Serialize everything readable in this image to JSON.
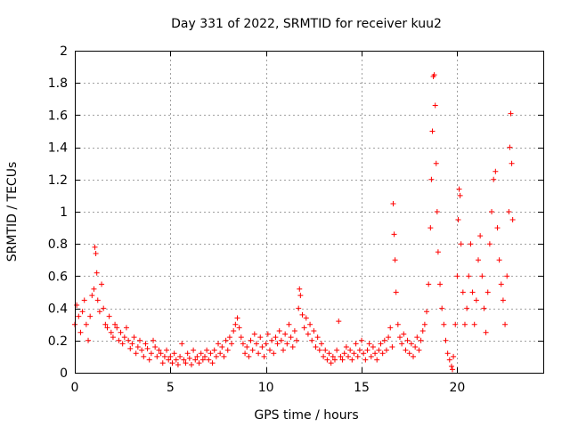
{
  "chart_data": {
    "type": "scatter",
    "title": "Day 331 of 2022, SRMTID for receiver kuu2",
    "xlabel": "GPS time / hours",
    "ylabel": "SRMTID / TECUs",
    "xlim": [
      0,
      24.5
    ],
    "ylim": [
      0,
      2
    ],
    "x_ticks": [
      0,
      5,
      10,
      15,
      20
    ],
    "x_tick_labels": [
      "0",
      "5",
      "10",
      "15",
      "20"
    ],
    "y_ticks": [
      0,
      0.2,
      0.4,
      0.6,
      0.8,
      1,
      1.2,
      1.4,
      1.6,
      1.8,
      2
    ],
    "y_tick_labels": [
      "0",
      "0.2",
      "0.4",
      "0.6",
      "0.8",
      "1",
      "1.2",
      "1.4",
      "1.6",
      "1.8",
      "2"
    ],
    "grid": true,
    "marker": "+",
    "series": [
      {
        "name": "SRMTID",
        "color": "#ff0000",
        "points": [
          [
            0.0,
            0.3
          ],
          [
            0.1,
            0.42
          ],
          [
            0.2,
            0.35
          ],
          [
            0.3,
            0.25
          ],
          [
            0.4,
            0.38
          ],
          [
            0.5,
            0.45
          ],
          [
            0.6,
            0.3
          ],
          [
            0.7,
            0.2
          ],
          [
            0.8,
            0.35
          ],
          [
            0.9,
            0.48
          ],
          [
            1.0,
            0.52
          ],
          [
            1.05,
            0.78
          ],
          [
            1.1,
            0.74
          ],
          [
            1.15,
            0.62
          ],
          [
            1.2,
            0.45
          ],
          [
            1.3,
            0.38
          ],
          [
            1.4,
            0.55
          ],
          [
            1.5,
            0.4
          ],
          [
            1.6,
            0.3
          ],
          [
            1.7,
            0.28
          ],
          [
            1.8,
            0.35
          ],
          [
            1.9,
            0.25
          ],
          [
            2.0,
            0.22
          ],
          [
            2.1,
            0.3
          ],
          [
            2.2,
            0.28
          ],
          [
            2.3,
            0.2
          ],
          [
            2.4,
            0.25
          ],
          [
            2.5,
            0.18
          ],
          [
            2.6,
            0.22
          ],
          [
            2.7,
            0.28
          ],
          [
            2.8,
            0.2
          ],
          [
            2.9,
            0.15
          ],
          [
            3.0,
            0.18
          ],
          [
            3.1,
            0.22
          ],
          [
            3.2,
            0.12
          ],
          [
            3.3,
            0.16
          ],
          [
            3.4,
            0.2
          ],
          [
            3.5,
            0.14
          ],
          [
            3.6,
            0.1
          ],
          [
            3.7,
            0.18
          ],
          [
            3.8,
            0.15
          ],
          [
            3.9,
            0.08
          ],
          [
            4.0,
            0.12
          ],
          [
            4.1,
            0.2
          ],
          [
            4.2,
            0.16
          ],
          [
            4.3,
            0.1
          ],
          [
            4.4,
            0.14
          ],
          [
            4.5,
            0.12
          ],
          [
            4.6,
            0.06
          ],
          [
            4.7,
            0.1
          ],
          [
            4.8,
            0.14
          ],
          [
            4.9,
            0.08
          ],
          [
            5.0,
            0.1
          ],
          [
            5.1,
            0.06
          ],
          [
            5.2,
            0.12
          ],
          [
            5.3,
            0.08
          ],
          [
            5.4,
            0.05
          ],
          [
            5.5,
            0.1
          ],
          [
            5.6,
            0.18
          ],
          [
            5.7,
            0.08
          ],
          [
            5.8,
            0.06
          ],
          [
            5.9,
            0.12
          ],
          [
            6.0,
            0.09
          ],
          [
            6.1,
            0.05
          ],
          [
            6.2,
            0.14
          ],
          [
            6.3,
            0.08
          ],
          [
            6.4,
            0.1
          ],
          [
            6.5,
            0.06
          ],
          [
            6.6,
            0.12
          ],
          [
            6.7,
            0.08
          ],
          [
            6.8,
            0.1
          ],
          [
            6.9,
            0.14
          ],
          [
            7.0,
            0.08
          ],
          [
            7.1,
            0.12
          ],
          [
            7.2,
            0.06
          ],
          [
            7.3,
            0.14
          ],
          [
            7.4,
            0.1
          ],
          [
            7.5,
            0.18
          ],
          [
            7.6,
            0.12
          ],
          [
            7.7,
            0.16
          ],
          [
            7.8,
            0.1
          ],
          [
            7.9,
            0.2
          ],
          [
            8.0,
            0.14
          ],
          [
            8.1,
            0.22
          ],
          [
            8.2,
            0.18
          ],
          [
            8.3,
            0.26
          ],
          [
            8.4,
            0.3
          ],
          [
            8.5,
            0.34
          ],
          [
            8.6,
            0.28
          ],
          [
            8.7,
            0.22
          ],
          [
            8.8,
            0.18
          ],
          [
            8.9,
            0.12
          ],
          [
            9.0,
            0.16
          ],
          [
            9.1,
            0.1
          ],
          [
            9.2,
            0.2
          ],
          [
            9.3,
            0.14
          ],
          [
            9.4,
            0.24
          ],
          [
            9.5,
            0.18
          ],
          [
            9.6,
            0.12
          ],
          [
            9.7,
            0.22
          ],
          [
            9.8,
            0.16
          ],
          [
            9.9,
            0.1
          ],
          [
            10.0,
            0.18
          ],
          [
            10.1,
            0.24
          ],
          [
            10.2,
            0.14
          ],
          [
            10.3,
            0.2
          ],
          [
            10.4,
            0.12
          ],
          [
            10.5,
            0.22
          ],
          [
            10.6,
            0.18
          ],
          [
            10.7,
            0.26
          ],
          [
            10.8,
            0.2
          ],
          [
            10.9,
            0.14
          ],
          [
            11.0,
            0.24
          ],
          [
            11.1,
            0.18
          ],
          [
            11.2,
            0.3
          ],
          [
            11.3,
            0.22
          ],
          [
            11.4,
            0.16
          ],
          [
            11.5,
            0.26
          ],
          [
            11.6,
            0.2
          ],
          [
            11.7,
            0.4
          ],
          [
            11.75,
            0.52
          ],
          [
            11.8,
            0.48
          ],
          [
            11.9,
            0.36
          ],
          [
            12.0,
            0.28
          ],
          [
            12.1,
            0.34
          ],
          [
            12.2,
            0.24
          ],
          [
            12.3,
            0.3
          ],
          [
            12.4,
            0.2
          ],
          [
            12.5,
            0.26
          ],
          [
            12.6,
            0.16
          ],
          [
            12.7,
            0.22
          ],
          [
            12.8,
            0.14
          ],
          [
            12.9,
            0.18
          ],
          [
            13.0,
            0.1
          ],
          [
            13.1,
            0.14
          ],
          [
            13.2,
            0.08
          ],
          [
            13.3,
            0.12
          ],
          [
            13.4,
            0.06
          ],
          [
            13.5,
            0.1
          ],
          [
            13.6,
            0.08
          ],
          [
            13.7,
            0.14
          ],
          [
            13.8,
            0.32
          ],
          [
            13.9,
            0.1
          ],
          [
            14.0,
            0.08
          ],
          [
            14.1,
            0.12
          ],
          [
            14.2,
            0.16
          ],
          [
            14.3,
            0.1
          ],
          [
            14.4,
            0.14
          ],
          [
            14.5,
            0.08
          ],
          [
            14.6,
            0.12
          ],
          [
            14.7,
            0.18
          ],
          [
            14.8,
            0.1
          ],
          [
            14.9,
            0.14
          ],
          [
            15.0,
            0.2
          ],
          [
            15.1,
            0.12
          ],
          [
            15.2,
            0.08
          ],
          [
            15.3,
            0.14
          ],
          [
            15.4,
            0.18
          ],
          [
            15.5,
            0.1
          ],
          [
            15.6,
            0.16
          ],
          [
            15.7,
            0.12
          ],
          [
            15.8,
            0.08
          ],
          [
            15.9,
            0.14
          ],
          [
            16.0,
            0.18
          ],
          [
            16.1,
            0.12
          ],
          [
            16.2,
            0.2
          ],
          [
            16.3,
            0.14
          ],
          [
            16.4,
            0.22
          ],
          [
            16.5,
            0.28
          ],
          [
            16.6,
            0.16
          ],
          [
            16.65,
            1.05
          ],
          [
            16.7,
            0.86
          ],
          [
            16.75,
            0.7
          ],
          [
            16.8,
            0.5
          ],
          [
            16.9,
            0.3
          ],
          [
            17.0,
            0.22
          ],
          [
            17.1,
            0.18
          ],
          [
            17.2,
            0.24
          ],
          [
            17.3,
            0.14
          ],
          [
            17.4,
            0.2
          ],
          [
            17.5,
            0.12
          ],
          [
            17.6,
            0.18
          ],
          [
            17.7,
            0.1
          ],
          [
            17.8,
            0.16
          ],
          [
            17.9,
            0.22
          ],
          [
            18.0,
            0.14
          ],
          [
            18.1,
            0.2
          ],
          [
            18.2,
            0.26
          ],
          [
            18.3,
            0.3
          ],
          [
            18.4,
            0.38
          ],
          [
            18.5,
            0.55
          ],
          [
            18.6,
            0.9
          ],
          [
            18.65,
            1.2
          ],
          [
            18.7,
            1.5
          ],
          [
            18.75,
            1.84
          ],
          [
            18.8,
            1.85
          ],
          [
            18.85,
            1.66
          ],
          [
            18.9,
            1.3
          ],
          [
            18.95,
            1.0
          ],
          [
            19.0,
            0.75
          ],
          [
            19.1,
            0.55
          ],
          [
            19.2,
            0.4
          ],
          [
            19.3,
            0.3
          ],
          [
            19.4,
            0.2
          ],
          [
            19.5,
            0.12
          ],
          [
            19.6,
            0.08
          ],
          [
            19.7,
            0.04
          ],
          [
            19.75,
            0.02
          ],
          [
            19.8,
            0.1
          ],
          [
            19.9,
            0.3
          ],
          [
            20.0,
            0.6
          ],
          [
            20.05,
            0.95
          ],
          [
            20.1,
            1.14
          ],
          [
            20.15,
            1.1
          ],
          [
            20.2,
            0.8
          ],
          [
            20.3,
            0.5
          ],
          [
            20.4,
            0.3
          ],
          [
            20.5,
            0.4
          ],
          [
            20.6,
            0.6
          ],
          [
            20.7,
            0.8
          ],
          [
            20.8,
            0.5
          ],
          [
            20.9,
            0.3
          ],
          [
            21.0,
            0.45
          ],
          [
            21.1,
            0.7
          ],
          [
            21.2,
            0.85
          ],
          [
            21.3,
            0.6
          ],
          [
            21.4,
            0.4
          ],
          [
            21.5,
            0.25
          ],
          [
            21.6,
            0.5
          ],
          [
            21.7,
            0.8
          ],
          [
            21.8,
            1.0
          ],
          [
            21.9,
            1.2
          ],
          [
            22.0,
            1.25
          ],
          [
            22.1,
            0.9
          ],
          [
            22.2,
            0.7
          ],
          [
            22.3,
            0.55
          ],
          [
            22.4,
            0.45
          ],
          [
            22.5,
            0.3
          ],
          [
            22.6,
            0.6
          ],
          [
            22.7,
            1.0
          ],
          [
            22.75,
            1.4
          ],
          [
            22.8,
            1.61
          ],
          [
            22.85,
            1.3
          ],
          [
            22.9,
            0.95
          ]
        ]
      }
    ]
  }
}
